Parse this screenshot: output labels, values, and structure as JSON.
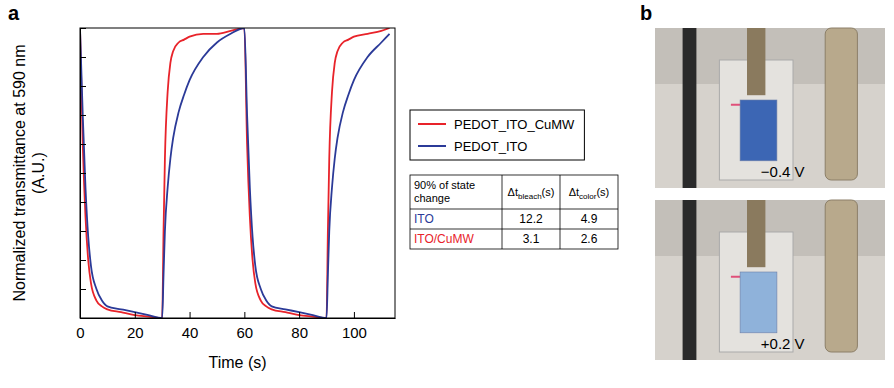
{
  "chart_data": {
    "type": "line",
    "panel": "a",
    "x_label": "Time (s)",
    "y_label": "Normalized transmittance at 590 nm (A.U.)",
    "xlim": [
      0,
      115
    ],
    "xticks": [
      0,
      20,
      40,
      60,
      80,
      100
    ],
    "ylim": [
      0,
      1
    ],
    "yticks": [
      0,
      0.1,
      0.2,
      0.3,
      0.4,
      0.5,
      0.6,
      0.7,
      0.8,
      0.9,
      1
    ],
    "tick_labels": "x",
    "grid": false,
    "legend": "right",
    "x": [
      0,
      1,
      2,
      3,
      4,
      6,
      8,
      10,
      15,
      20,
      25,
      30,
      30.5,
      31,
      32,
      33,
      34,
      36,
      38,
      40,
      45,
      50,
      55,
      60,
      61,
      62,
      63,
      64,
      66,
      68,
      70,
      75,
      80,
      85,
      90,
      90.5,
      91,
      92,
      93,
      94,
      96,
      98,
      100,
      105,
      110,
      113
    ],
    "series": [
      {
        "name": "PEDOT_ITO_CuMW",
        "color": "#e8232a",
        "values": [
          1,
          0.6,
          0.35,
          0.2,
          0.12,
          0.06,
          0.04,
          0.03,
          0.02,
          0.01,
          0.005,
          0,
          0.3,
          0.55,
          0.78,
          0.88,
          0.92,
          0.95,
          0.96,
          0.97,
          0.98,
          0.98,
          0.99,
          1,
          0.6,
          0.35,
          0.2,
          0.12,
          0.06,
          0.04,
          0.03,
          0.02,
          0.01,
          0.005,
          0,
          0.3,
          0.55,
          0.78,
          0.88,
          0.92,
          0.95,
          0.96,
          0.97,
          0.98,
          0.99,
          1
        ]
      },
      {
        "name": "PEDOT_ITO",
        "color": "#2b3a98",
        "values": [
          1,
          0.7,
          0.45,
          0.28,
          0.18,
          0.1,
          0.06,
          0.04,
          0.03,
          0.02,
          0.01,
          0,
          0.15,
          0.3,
          0.45,
          0.55,
          0.62,
          0.71,
          0.77,
          0.82,
          0.9,
          0.95,
          0.98,
          1,
          0.7,
          0.45,
          0.28,
          0.18,
          0.1,
          0.06,
          0.04,
          0.03,
          0.02,
          0.01,
          0,
          0.15,
          0.3,
          0.45,
          0.55,
          0.62,
          0.71,
          0.77,
          0.82,
          0.9,
          0.95,
          0.98
        ]
      }
    ],
    "table": {
      "header": [
        [
          "90% of state change"
        ],
        [
          "Δt",
          "bleach",
          "(s)"
        ],
        [
          "Δt",
          "color",
          "(s)"
        ]
      ],
      "rows": [
        {
          "name": "ITO",
          "color": "#2b3a98",
          "values": [
            12.2,
            4.9
          ]
        },
        {
          "name": "ITO/CuMW",
          "color": "#e8232a",
          "values": [
            3.1,
            2.6
          ]
        }
      ]
    }
  },
  "photo_panel": {
    "panel": "b",
    "images": [
      {
        "label": "−0.4 V",
        "color": "#3c66b4"
      },
      {
        "label": "+0.2 V",
        "color": "#8fb2da"
      }
    ]
  }
}
